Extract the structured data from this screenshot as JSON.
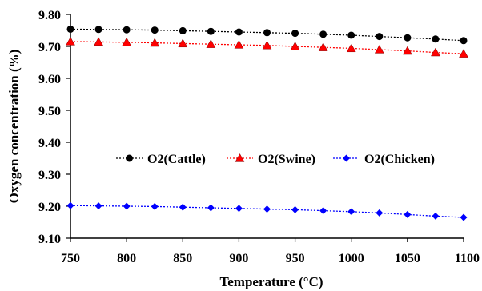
{
  "chart_data": {
    "type": "line",
    "title": "",
    "xlabel": "Temperature (°C)",
    "ylabel": "Oxygen concentration (%)",
    "xlim": [
      750,
      1100
    ],
    "ylim": [
      9.1,
      9.8
    ],
    "x_ticks": [
      "750",
      "800",
      "850",
      "900",
      "950",
      "1000",
      "1050",
      "1100"
    ],
    "y_ticks": [
      "9.10",
      "9.20",
      "9.30",
      "9.40",
      "9.50",
      "9.60",
      "9.70",
      "9.80"
    ],
    "grid": false,
    "legend_position": "center",
    "x": [
      750,
      775,
      800,
      825,
      850,
      875,
      900,
      925,
      950,
      975,
      1000,
      1025,
      1050,
      1075,
      1100
    ],
    "series": [
      {
        "name": "O2(Cattle)",
        "color": "#000000",
        "marker": "circle",
        "values": [
          9.754,
          9.753,
          9.752,
          9.751,
          9.749,
          9.747,
          9.745,
          9.743,
          9.741,
          9.738,
          9.735,
          9.731,
          9.727,
          9.723,
          9.718
        ]
      },
      {
        "name": "O2(Swine)",
        "color": "#ff0000",
        "marker": "triangle",
        "values": [
          9.715,
          9.714,
          9.713,
          9.711,
          9.709,
          9.707,
          9.705,
          9.703,
          9.7,
          9.697,
          9.694,
          9.69,
          9.686,
          9.681,
          9.677
        ]
      },
      {
        "name": "O2(Chicken)",
        "color": "#0000ff",
        "marker": "diamond",
        "values": [
          9.202,
          9.201,
          9.2,
          9.199,
          9.197,
          9.195,
          9.193,
          9.191,
          9.189,
          9.186,
          9.183,
          9.179,
          9.174,
          9.169,
          9.165
        ]
      }
    ]
  }
}
